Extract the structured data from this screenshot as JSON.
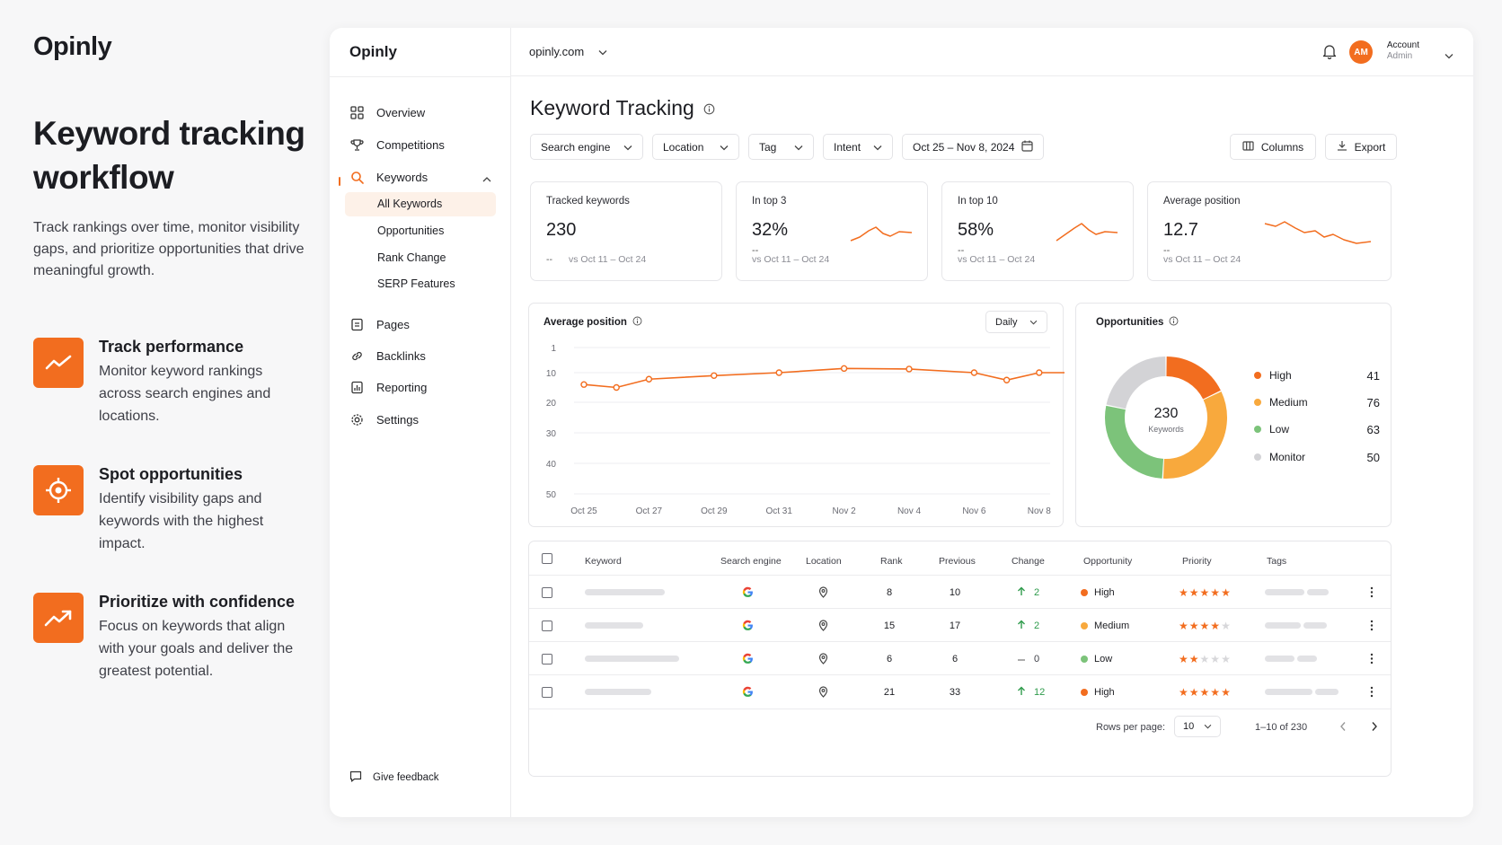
{
  "left": {
    "brand": "Opinly",
    "headline": "Keyword tracking workflow",
    "lede": "Track rankings over time, monitor visibility gaps, and prioritize opportunities that drive meaningful growth.",
    "features": [
      {
        "title": "Track performance",
        "desc": "Monitor keyword rankings across search engines and locations.",
        "icon": "trend-line-icon"
      },
      {
        "title": "Spot opportunities",
        "desc": "Identify visibility gaps and keywords with the highest impact.",
        "icon": "target-icon"
      },
      {
        "title": "Prioritize with confidence",
        "desc": "Focus on keywords that align with your goals and deliver the greatest potential.",
        "icon": "arrow-trend-up-icon"
      }
    ]
  },
  "sidebar": {
    "brand": "Opinly",
    "nav": {
      "overview": "Overview",
      "competitions": "Competitions",
      "keywords": "Keywords",
      "pages": "Pages",
      "backlinks": "Backlinks",
      "reporting": "Reporting",
      "settings": "Settings"
    },
    "sub": [
      "All Keywords",
      "Opportunities",
      "Rank Change",
      "SERP Features"
    ],
    "feedback": "Give feedback"
  },
  "topbar": {
    "domain": "opinly.com",
    "avatar": "AM",
    "account": "Account",
    "role": "Admin"
  },
  "page": {
    "title": "Keyword Tracking"
  },
  "filters": {
    "engine": "Search engine",
    "location": "Location",
    "tag": "Tag",
    "intent": "Intent",
    "date": "Oct 25 – Nov 8, 2024",
    "columns": "Columns",
    "export": "Export"
  },
  "kpis": [
    {
      "label": "Tracked keywords",
      "value": "230",
      "delta": "--",
      "vs": "vs Oct 11 – Oct 24"
    },
    {
      "label": "In top 3",
      "value": "32%",
      "delta": "--",
      "vs": "vs Oct 11 – Oct 24"
    },
    {
      "label": "In top 10",
      "value": "58%",
      "delta": "--",
      "vs": "vs Oct 11 – Oct 24"
    },
    {
      "label": "Average position",
      "value": "12.7",
      "delta": "--",
      "vs": "vs Oct 11 – Oct 24"
    }
  ],
  "avg_chart": {
    "title": "Average position",
    "granularity": "Daily"
  },
  "opps": {
    "title": "Opportunities",
    "total": "230",
    "total_label": "Keywords",
    "items": [
      {
        "name": "High",
        "count": "41",
        "color": "#f26d1f"
      },
      {
        "name": "Medium",
        "count": "76",
        "color": "#f8a93d"
      },
      {
        "name": "Low",
        "count": "63",
        "color": "#7cc37a"
      },
      {
        "name": "Monitor",
        "count": "50",
        "color": "#d3d3d6"
      }
    ]
  },
  "chart_data": [
    {
      "type": "line",
      "title": "Average position",
      "x": [
        "Oct 25",
        "Oct 26",
        "Oct 27",
        "Oct 28",
        "Oct 29",
        "Oct 30",
        "Oct 31",
        "Nov 1",
        "Nov 2",
        "Nov 3",
        "Nov 4",
        "Nov 5",
        "Nov 6",
        "Nov 7",
        "Nov 8"
      ],
      "xticks": [
        "Oct 25",
        "Oct 27",
        "Oct 29",
        "Oct 31",
        "Nov 2",
        "Nov 4",
        "Nov 6",
        "Nov 8"
      ],
      "yticks": [
        "1",
        "10",
        "20",
        "30",
        "40",
        "50"
      ],
      "ylim": [
        1,
        50
      ],
      "y_inverted": true,
      "points": [
        {
          "x": "Oct 25",
          "y": 14.0
        },
        {
          "x": "Oct 26",
          "y": 15.0
        },
        {
          "x": "Oct 27",
          "y": 12.2
        },
        {
          "x": "Oct 29",
          "y": 11.0
        },
        {
          "x": "Oct 31",
          "y": 10.0
        },
        {
          "x": "Nov 2",
          "y": 8.5
        },
        {
          "x": "Nov 4",
          "y": 8.7
        },
        {
          "x": "Nov 6",
          "y": 10.0
        },
        {
          "x": "Nov 7",
          "y": 12.5
        },
        {
          "x": "Nov 8",
          "y": 10.0
        },
        {
          "x": "Nov 9",
          "y": 10.0
        }
      ],
      "color": "#f26d1f",
      "grid": true
    },
    {
      "type": "pie",
      "title": "Opportunities",
      "categories": [
        "High",
        "Medium",
        "Low",
        "Monitor"
      ],
      "values": [
        41,
        76,
        63,
        50
      ],
      "colors": [
        "#f26d1f",
        "#f8a93d",
        "#7cc37a",
        "#d3d3d6"
      ],
      "donut": true
    }
  ],
  "table": {
    "headers": {
      "keyword": "Keyword",
      "engine": "Search engine",
      "location": "Location",
      "rank": "Rank",
      "previous": "Previous",
      "change": "Change",
      "opportunity": "Opportunity",
      "priority": "Priority",
      "tags": "Tags"
    },
    "rows": [
      {
        "rank": "8",
        "previous": "10",
        "change": "2",
        "trend": "up",
        "opportunity": "High",
        "opp_color": "#f26d1f",
        "stars": 5,
        "kw_fill": 0.85
      },
      {
        "rank": "15",
        "previous": "17",
        "change": "2",
        "trend": "up",
        "opportunity": "Medium",
        "opp_color": "#f8a93d",
        "stars": 4,
        "kw_fill": 0.62
      },
      {
        "rank": "6",
        "previous": "6",
        "change": "0",
        "trend": "flat",
        "opportunity": "Low",
        "opp_color": "#7cc37a",
        "stars": 2,
        "kw_fill": 1.0
      },
      {
        "rank": "21",
        "previous": "33",
        "change": "12",
        "trend": "up",
        "opportunity": "High",
        "opp_color": "#f26d1f",
        "stars": 5,
        "kw_fill": 0.7
      }
    ],
    "rows_per_page_label": "Rows per page:",
    "rows_per_page": "10",
    "range": "1–10 of 230"
  },
  "colors": {
    "accent": "#f26d1f",
    "up": "#2e9b4b"
  }
}
